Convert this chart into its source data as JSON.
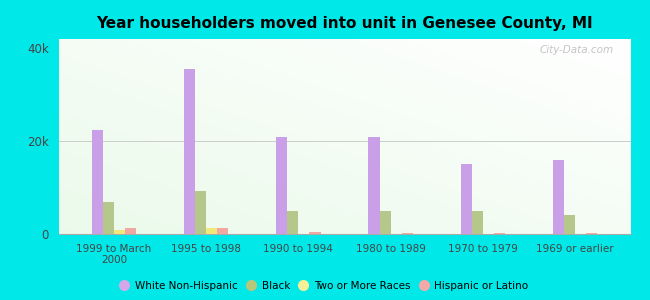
{
  "title": "Year householders moved into unit in Genesee County, MI",
  "categories": [
    "1999 to March\n2000",
    "1995 to 1998",
    "1990 to 1994",
    "1980 to 1989",
    "1970 to 1979",
    "1969 or earlier"
  ],
  "series": {
    "White Non-Hispanic": {
      "values": [
        22500,
        35500,
        21000,
        20800,
        15000,
        16000
      ],
      "color": "#c9a0e8"
    },
    "Black": {
      "values": [
        7000,
        9200,
        5000,
        5000,
        5000,
        4000
      ],
      "color": "#b5c78a"
    },
    "Two or More Races": {
      "values": [
        800,
        1200,
        0,
        50,
        50,
        50
      ],
      "color": "#f0e878"
    },
    "Hispanic or Latino": {
      "values": [
        1200,
        1200,
        500,
        300,
        200,
        200
      ],
      "color": "#f0a8a0"
    }
  },
  "ylim": [
    0,
    42000
  ],
  "yticks": [
    0,
    20000,
    40000
  ],
  "ytick_labels": [
    "0",
    "20k",
    "40k"
  ],
  "background_color_outer": "#00e8e8",
  "watermark": "City-Data.com",
  "bar_width": 0.12,
  "legend_items": [
    "White Non-Hispanic",
    "Black",
    "Two or More Races",
    "Hispanic or Latino"
  ],
  "legend_colors": [
    "#d4a8e8",
    "#b8c87a",
    "#f5f098",
    "#f4a8a8"
  ]
}
